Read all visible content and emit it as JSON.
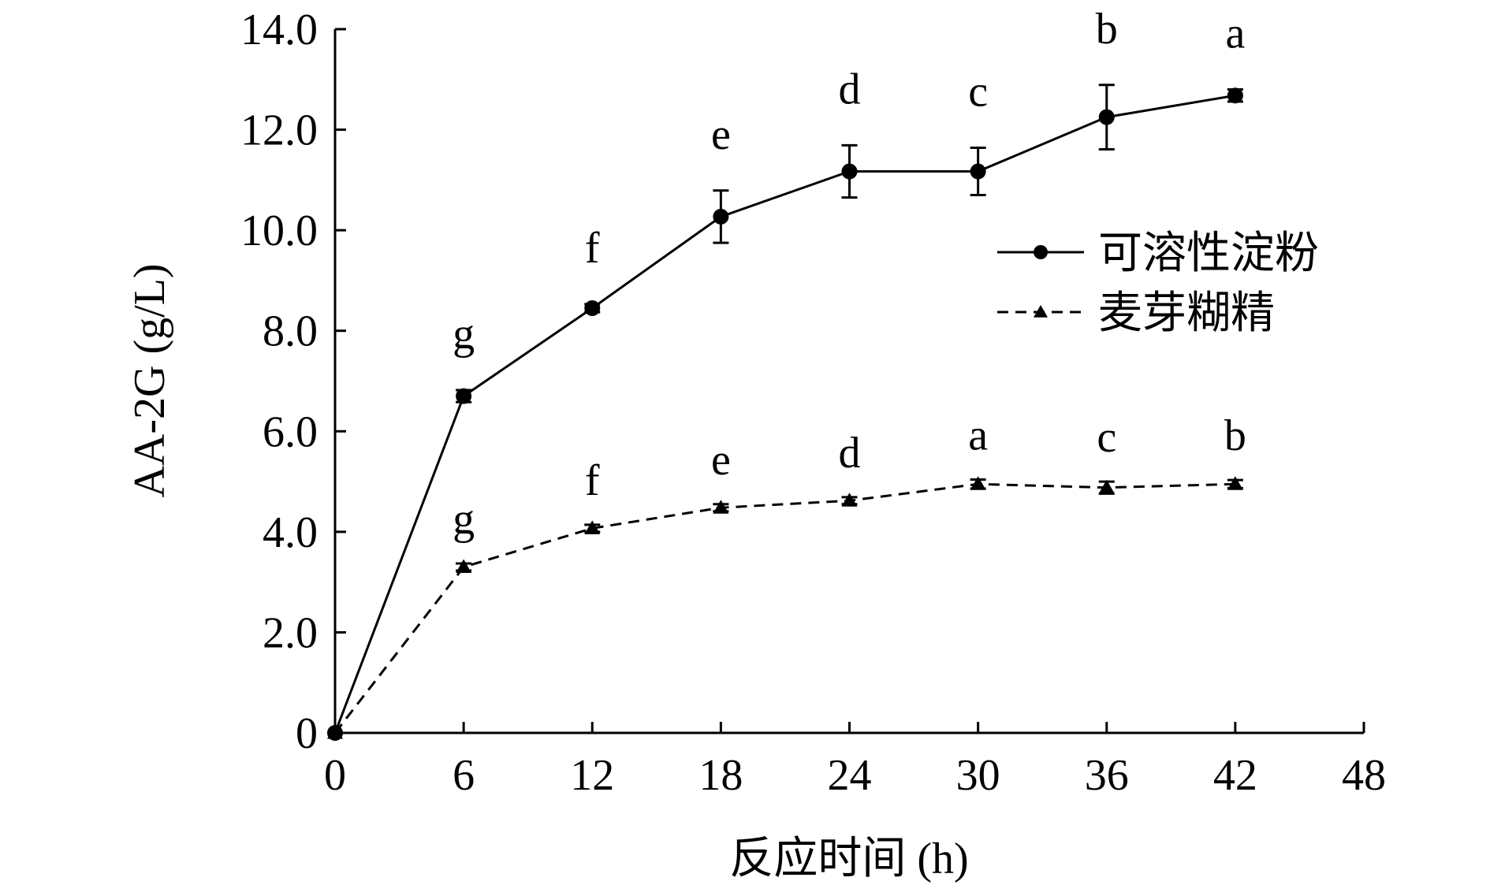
{
  "chart_data": {
    "type": "line",
    "title": "",
    "xlabel": "反应时间 (h)",
    "ylabel": "AA-2G (g/L)",
    "xlim": [
      0,
      48
    ],
    "ylim": [
      0,
      14
    ],
    "x_ticks": [
      0,
      6,
      12,
      18,
      24,
      30,
      36,
      42,
      48
    ],
    "x_tick_labels": [
      "0",
      "6",
      "12",
      "18",
      "24",
      "30",
      "36",
      "42",
      "48"
    ],
    "y_ticks": [
      0,
      2,
      4,
      6,
      8,
      10,
      12,
      14
    ],
    "y_tick_labels": [
      "0",
      "2.0",
      "4.0",
      "6.0",
      "8.0",
      "10.0",
      "12.0",
      "14.0"
    ],
    "grid": false,
    "legend_position": "right-middle",
    "x": [
      0,
      6,
      12,
      18,
      24,
      30,
      36,
      42
    ],
    "series": [
      {
        "name": "可溶性淀粉",
        "line_style": "solid",
        "marker": "circle",
        "color": "#000000",
        "values": [
          0,
          6.7,
          8.45,
          10.27,
          11.17,
          11.17,
          12.25,
          12.68
        ],
        "errors": [
          0,
          0.12,
          0.08,
          0.52,
          0.52,
          0.47,
          0.64,
          0.12
        ],
        "significance_labels": [
          "",
          "g",
          "f",
          "e",
          "d",
          "c",
          "b",
          "a"
        ]
      },
      {
        "name": "麦芽糊精",
        "line_style": "dashed",
        "marker": "triangle",
        "color": "#000000",
        "values": [
          0,
          3.3,
          4.07,
          4.48,
          4.62,
          4.95,
          4.88,
          4.95
        ],
        "errors": [
          0,
          0.07,
          0.07,
          0.07,
          0.07,
          0.09,
          0.12,
          0.08
        ],
        "significance_labels": [
          "",
          "g",
          "f",
          "e",
          "d",
          "a",
          "c",
          "b"
        ]
      }
    ]
  }
}
